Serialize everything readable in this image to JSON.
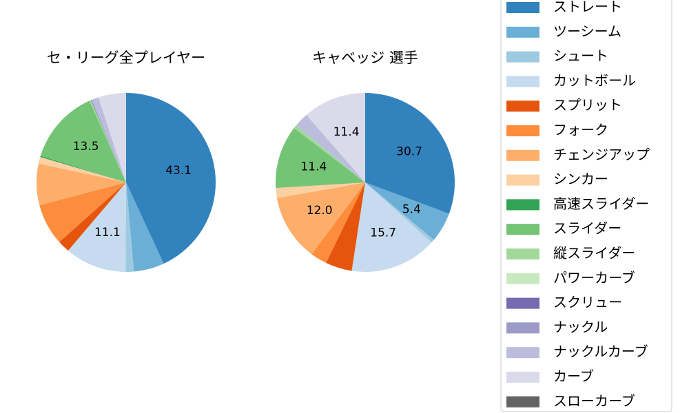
{
  "chart_data": {
    "type": "pie",
    "categories": [
      "ストレート",
      "ツーシーム",
      "シュート",
      "カットボール",
      "スプリット",
      "フォーク",
      "チェンジアップ",
      "シンカー",
      "高速スライダー",
      "スライダー",
      "縦スライダー",
      "パワーカーブ",
      "スクリュー",
      "ナックル",
      "ナックルカーブ",
      "カーブ",
      "スローカーブ"
    ],
    "colors": [
      "#3182bd",
      "#6baed6",
      "#9ecae1",
      "#c6dbef",
      "#e6550d",
      "#fd8d3c",
      "#fdae6b",
      "#fdd0a2",
      "#31a354",
      "#74c476",
      "#a1d99b",
      "#c7e9c0",
      "#756bb1",
      "#9e9ac8",
      "#bcbddc",
      "#dadaeb",
      "#636363"
    ],
    "series": [
      {
        "name": "セ・リーグ全プレイヤー",
        "values": [
          43.1,
          5.5,
          1.5,
          11.1,
          2.2,
          7.5,
          7.5,
          1.2,
          0.2,
          13.5,
          0.3,
          0,
          0.1,
          0,
          1.3,
          5.0,
          0
        ],
        "value_labels": [
          "43.1",
          null,
          null,
          "11.1",
          null,
          null,
          null,
          null,
          null,
          "13.5",
          null,
          null,
          null,
          null,
          null,
          null,
          null
        ]
      },
      {
        "name": "キャベッジ  選手",
        "values": [
          30.7,
          5.4,
          0.6,
          15.7,
          4.8,
          3.0,
          12.0,
          1.8,
          0,
          11.4,
          0.6,
          0,
          0,
          0,
          2.6,
          11.4,
          0
        ],
        "value_labels": [
          "30.7",
          "5.4",
          null,
          "15.7",
          null,
          null,
          "12.0",
          null,
          null,
          "11.4",
          null,
          null,
          null,
          null,
          null,
          "11.4",
          null
        ]
      }
    ]
  }
}
